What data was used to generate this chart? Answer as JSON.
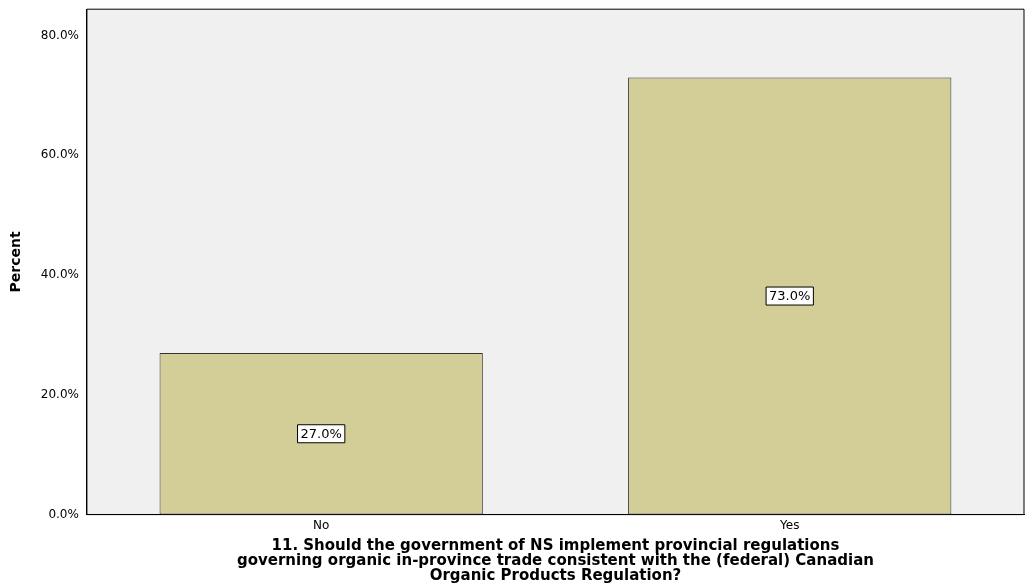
{
  "chart_data": {
    "type": "bar",
    "xlabel": "11. Should the government of NS implement provincial regulations governing organic in-province trade consistent with the (federal) Canadian Organic Products Regulation?",
    "ylabel": "Percent",
    "categories": [
      "No",
      "Yes"
    ],
    "values": [
      27.0,
      73.0
    ],
    "color": "#d3ce97",
    "value_labels": [
      "27.0%",
      "73.0%"
    ],
    "ylim": [
      0,
      84.4
    ],
    "yticks": [
      {
        "value": 0,
        "label": "0.0%"
      },
      {
        "value": 20,
        "label": "20.0%"
      },
      {
        "value": 40,
        "label": "40.0%"
      },
      {
        "value": 60,
        "label": "60.0%"
      },
      {
        "value": 80,
        "label": "80.0%"
      }
    ],
    "grid": false,
    "legend": false
  }
}
